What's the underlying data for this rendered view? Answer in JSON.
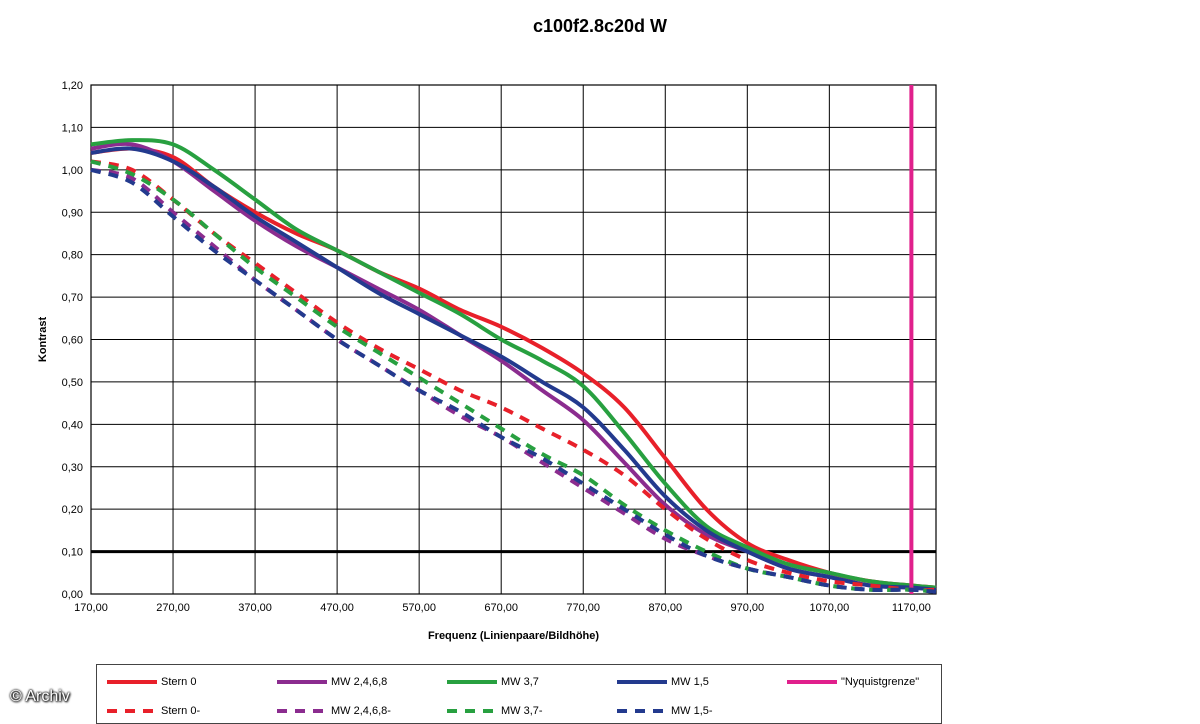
{
  "watermark": "© Archiv",
  "chart_data": {
    "type": "line",
    "title": "c100f2.8c20d W",
    "xlabel": "Frequenz (Linienpaare/Bildhöhe)",
    "ylabel": "Kontrast",
    "xlim": [
      170,
      1200
    ],
    "ylim": [
      0,
      1.2
    ],
    "xticks": [
      "170,00",
      "270,00",
      "370,00",
      "470,00",
      "570,00",
      "670,00",
      "770,00",
      "870,00",
      "970,00",
      "1070,00",
      "1170,00"
    ],
    "yticks": [
      "0,00",
      "0,10",
      "0,20",
      "0,30",
      "0,40",
      "0,50",
      "0,60",
      "0,70",
      "0,80",
      "0,90",
      "1,00",
      "1,10",
      "1,20"
    ],
    "grid": true,
    "legend_position": "bottom",
    "reference_line": {
      "y": 0.1,
      "color": "#000000"
    },
    "series": [
      {
        "name": "Stern 0",
        "color": "#e8202a",
        "dash": false,
        "x": [
          170,
          220,
          270,
          320,
          370,
          420,
          470,
          520,
          570,
          620,
          670,
          720,
          770,
          820,
          870,
          920,
          970,
          1020,
          1070,
          1120,
          1170,
          1200
        ],
        "y": [
          1.04,
          1.05,
          1.03,
          0.96,
          0.9,
          0.85,
          0.81,
          0.76,
          0.72,
          0.67,
          0.63,
          0.58,
          0.52,
          0.44,
          0.32,
          0.2,
          0.12,
          0.08,
          0.05,
          0.03,
          0.02,
          0.015
        ]
      },
      {
        "name": "MW 2,4,6,8",
        "color": "#8b2c8f",
        "dash": false,
        "x": [
          170,
          220,
          270,
          320,
          370,
          420,
          470,
          520,
          570,
          620,
          670,
          720,
          770,
          820,
          870,
          920,
          970,
          1020,
          1070,
          1120,
          1170,
          1200
        ],
        "y": [
          1.05,
          1.06,
          1.02,
          0.95,
          0.88,
          0.82,
          0.77,
          0.72,
          0.67,
          0.61,
          0.55,
          0.48,
          0.41,
          0.31,
          0.21,
          0.14,
          0.1,
          0.06,
          0.04,
          0.02,
          0.015,
          0.01
        ]
      },
      {
        "name": "MW 3,7",
        "color": "#28a040",
        "dash": false,
        "x": [
          170,
          220,
          270,
          320,
          370,
          420,
          470,
          520,
          570,
          620,
          670,
          720,
          770,
          820,
          870,
          920,
          970,
          1020,
          1070,
          1120,
          1170,
          1200
        ],
        "y": [
          1.06,
          1.07,
          1.06,
          1.0,
          0.93,
          0.86,
          0.81,
          0.76,
          0.71,
          0.66,
          0.6,
          0.55,
          0.49,
          0.38,
          0.26,
          0.16,
          0.11,
          0.07,
          0.05,
          0.03,
          0.02,
          0.015
        ]
      },
      {
        "name": "MW 1,5",
        "color": "#233a8e",
        "dash": false,
        "x": [
          170,
          220,
          270,
          320,
          370,
          420,
          470,
          520,
          570,
          620,
          670,
          720,
          770,
          820,
          870,
          920,
          970,
          1020,
          1070,
          1120,
          1170,
          1200
        ],
        "y": [
          1.04,
          1.05,
          1.02,
          0.96,
          0.89,
          0.83,
          0.77,
          0.71,
          0.66,
          0.61,
          0.56,
          0.5,
          0.44,
          0.34,
          0.23,
          0.15,
          0.1,
          0.06,
          0.04,
          0.02,
          0.015,
          0.01
        ]
      },
      {
        "name": "\"Nyquistgrenze\"",
        "color": "#e0208c",
        "dash": false,
        "vertical": true,
        "x": [
          1170,
          1170
        ],
        "y": [
          0,
          1.2
        ]
      },
      {
        "name": "Stern 0-",
        "color": "#e8202a",
        "dash": true,
        "x": [
          170,
          220,
          270,
          320,
          370,
          420,
          470,
          520,
          570,
          620,
          670,
          720,
          770,
          820,
          870,
          920,
          970,
          1020,
          1070,
          1120,
          1170,
          1200
        ],
        "y": [
          1.02,
          1.0,
          0.93,
          0.85,
          0.78,
          0.71,
          0.64,
          0.58,
          0.53,
          0.48,
          0.44,
          0.39,
          0.34,
          0.28,
          0.2,
          0.13,
          0.08,
          0.05,
          0.03,
          0.02,
          0.01,
          0.01
        ]
      },
      {
        "name": "MW 2,4,6,8-",
        "color": "#8b2c8f",
        "dash": true,
        "x": [
          170,
          220,
          270,
          320,
          370,
          420,
          470,
          520,
          570,
          620,
          670,
          720,
          770,
          820,
          870,
          920,
          970,
          1020,
          1070,
          1120,
          1170,
          1200
        ],
        "y": [
          1.0,
          0.98,
          0.9,
          0.82,
          0.74,
          0.67,
          0.6,
          0.54,
          0.48,
          0.42,
          0.37,
          0.31,
          0.25,
          0.19,
          0.13,
          0.09,
          0.06,
          0.04,
          0.02,
          0.01,
          0.01,
          0.005
        ]
      },
      {
        "name": "MW 3,7-",
        "color": "#28a040",
        "dash": true,
        "x": [
          170,
          220,
          270,
          320,
          370,
          420,
          470,
          520,
          570,
          620,
          670,
          720,
          770,
          820,
          870,
          920,
          970,
          1020,
          1070,
          1120,
          1170,
          1200
        ],
        "y": [
          1.02,
          0.99,
          0.93,
          0.85,
          0.77,
          0.7,
          0.63,
          0.57,
          0.51,
          0.45,
          0.39,
          0.33,
          0.28,
          0.21,
          0.15,
          0.1,
          0.06,
          0.04,
          0.02,
          0.01,
          0.01,
          0.005
        ]
      },
      {
        "name": "MW 1,5-",
        "color": "#233a8e",
        "dash": true,
        "x": [
          170,
          220,
          270,
          320,
          370,
          420,
          470,
          520,
          570,
          620,
          670,
          720,
          770,
          820,
          870,
          920,
          970,
          1020,
          1070,
          1120,
          1170,
          1200
        ],
        "y": [
          1.0,
          0.97,
          0.89,
          0.81,
          0.74,
          0.67,
          0.6,
          0.54,
          0.48,
          0.43,
          0.37,
          0.32,
          0.26,
          0.2,
          0.14,
          0.09,
          0.06,
          0.04,
          0.02,
          0.01,
          0.01,
          0.005
        ]
      }
    ]
  }
}
